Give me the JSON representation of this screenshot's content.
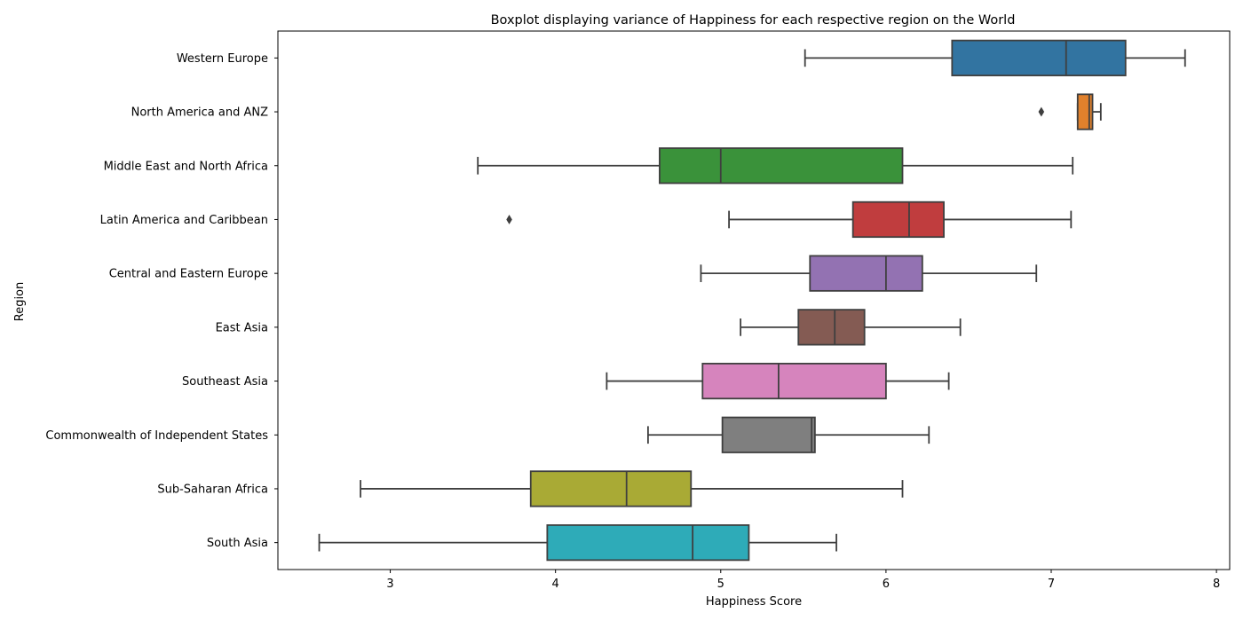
{
  "chart_data": {
    "type": "boxplot",
    "orientation": "horizontal",
    "title": "Boxplot displaying variance of Happiness for each respective region on the World",
    "xlabel": "Happiness Score",
    "ylabel": "Region",
    "xlim": [
      2.32,
      8.08
    ],
    "xticks": [
      3,
      4,
      5,
      6,
      7,
      8
    ],
    "grid": false,
    "legend": "none",
    "categories": [
      "Western Europe",
      "North America and ANZ",
      "Middle East and North Africa",
      "Latin America and Caribbean",
      "Central and Eastern Europe",
      "East Asia",
      "Southeast Asia",
      "Commonwealth of Independent States",
      "Sub-Saharan Africa",
      "South Asia"
    ],
    "boxes": [
      {
        "region": "Western Europe",
        "whisker_low": 5.51,
        "q1": 6.4,
        "median": 7.09,
        "q3": 7.45,
        "whisker_high": 7.81,
        "outliers": [],
        "color": "#3274a1"
      },
      {
        "region": "North America and ANZ",
        "whisker_low": 7.16,
        "q1": 7.16,
        "median": 7.23,
        "q3": 7.25,
        "whisker_high": 7.3,
        "outliers": [
          6.94
        ],
        "color": "#e1812c"
      },
      {
        "region": "Middle East and North Africa",
        "whisker_low": 3.53,
        "q1": 4.63,
        "median": 5.0,
        "q3": 6.1,
        "whisker_high": 7.13,
        "outliers": [],
        "color": "#3a923a"
      },
      {
        "region": "Latin America and Caribbean",
        "whisker_low": 5.05,
        "q1": 5.8,
        "median": 6.14,
        "q3": 6.35,
        "whisker_high": 7.12,
        "outliers": [
          3.72
        ],
        "color": "#c03d3e"
      },
      {
        "region": "Central and Eastern Europe",
        "whisker_low": 4.88,
        "q1": 5.54,
        "median": 6.0,
        "q3": 6.22,
        "whisker_high": 6.91,
        "outliers": [],
        "color": "#9372b2"
      },
      {
        "region": "East Asia",
        "whisker_low": 5.12,
        "q1": 5.47,
        "median": 5.69,
        "q3": 5.87,
        "whisker_high": 6.45,
        "outliers": [],
        "color": "#845b53"
      },
      {
        "region": "Southeast Asia",
        "whisker_low": 4.31,
        "q1": 4.89,
        "median": 5.35,
        "q3": 6.0,
        "whisker_high": 6.38,
        "outliers": [],
        "color": "#d684bd"
      },
      {
        "region": "Commonwealth of Independent States",
        "whisker_low": 4.56,
        "q1": 5.01,
        "median": 5.55,
        "q3": 5.57,
        "whisker_high": 6.26,
        "outliers": [],
        "color": "#7f7f7f"
      },
      {
        "region": "Sub-Saharan Africa",
        "whisker_low": 2.82,
        "q1": 3.85,
        "median": 4.43,
        "q3": 4.82,
        "whisker_high": 6.1,
        "outliers": [],
        "color": "#a9aa35"
      },
      {
        "region": "South Asia",
        "whisker_low": 2.57,
        "q1": 3.95,
        "median": 4.83,
        "q3": 5.17,
        "whisker_high": 5.7,
        "outliers": [],
        "color": "#2eabb8"
      }
    ]
  }
}
